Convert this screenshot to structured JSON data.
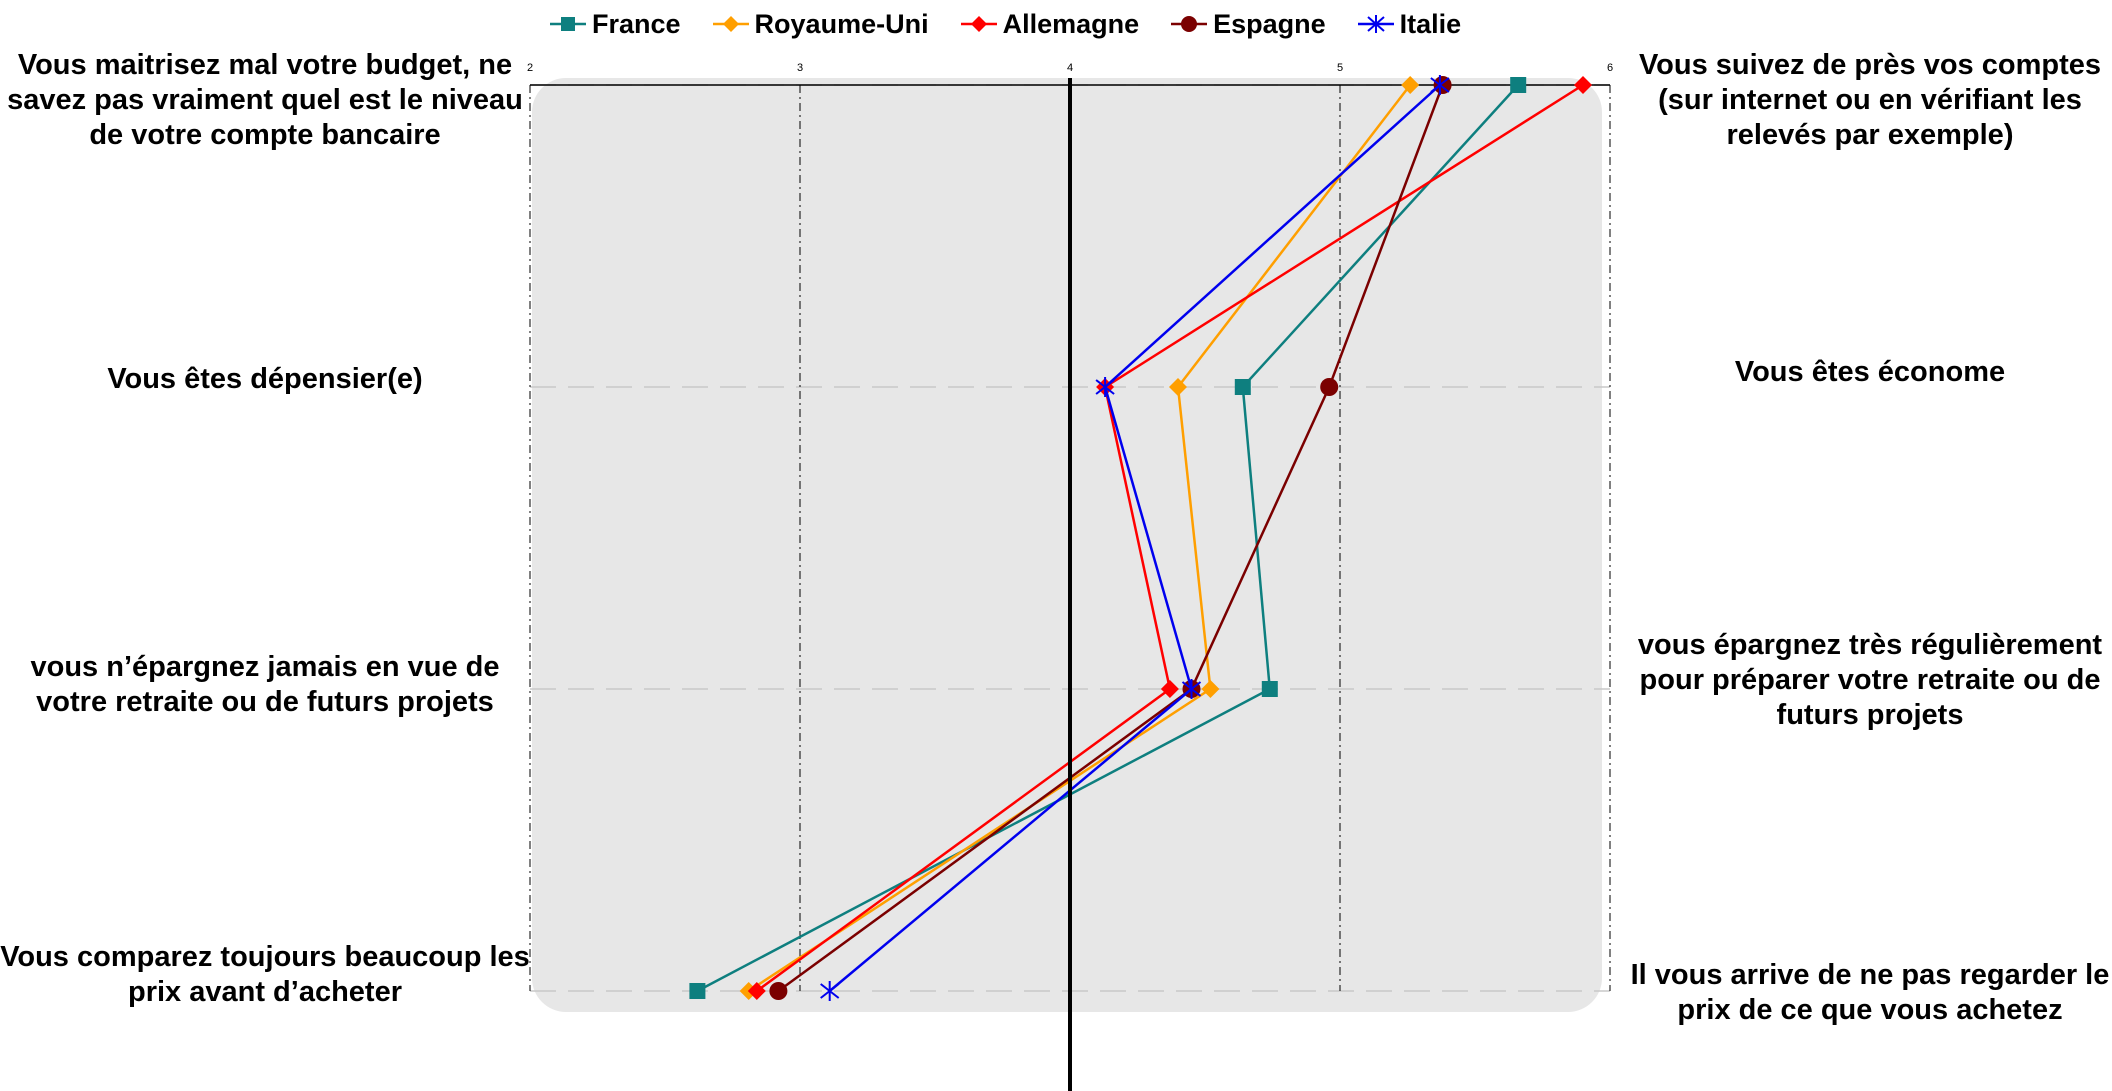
{
  "chart_data": {
    "type": "line",
    "orientation": "horizontal-profile",
    "xlim": [
      2,
      6
    ],
    "x_ticks": [
      "2",
      "3",
      "4",
      "5",
      "6"
    ],
    "reference_line_x": 4,
    "grid": true,
    "legend_position": "top",
    "left_labels": [
      "Vous maitrisez mal votre budget, ne savez pas vraiment quel est le niveau de votre compte bancaire",
      "Vous êtes dépensier(e)",
      "vous n’épargnez jamais en vue de votre retraite ou de futurs projets",
      "Vous comparez toujours beaucoup les prix avant d’acheter"
    ],
    "right_labels": [
      "Vous suivez de près vos comptes (sur internet ou en vérifiant les relevés par exemple)",
      "Vous êtes économe",
      "vous épargnez très régulièrement pour préparer votre retraite ou de futurs projets",
      "Il vous arrive de ne pas regarder le prix de ce que vous achetez"
    ],
    "series": [
      {
        "name": "France",
        "color": "#0e7f7f",
        "marker": "square",
        "values": [
          5.66,
          4.64,
          4.74,
          2.62
        ]
      },
      {
        "name": "Royaume-Uni",
        "color": "#ff9f00",
        "marker": "diamond",
        "values": [
          5.26,
          4.4,
          4.52,
          2.81
        ]
      },
      {
        "name": "Allemagne",
        "color": "#ff0000",
        "marker": "diamond",
        "values": [
          5.9,
          4.13,
          4.37,
          2.84
        ]
      },
      {
        "name": "Espagne",
        "color": "#7b0000",
        "marker": "circle",
        "values": [
          5.38,
          4.96,
          4.45,
          2.92
        ]
      },
      {
        "name": "Italie",
        "color": "#0000ee",
        "marker": "star",
        "values": [
          5.37,
          4.13,
          4.45,
          3.11
        ]
      }
    ]
  }
}
